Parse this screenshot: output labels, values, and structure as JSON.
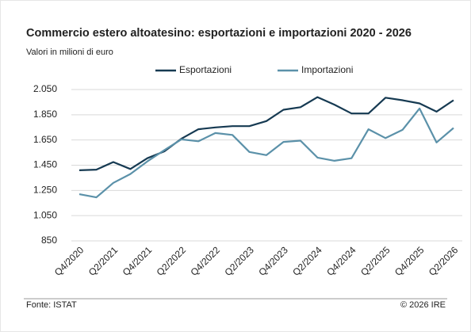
{
  "chart_data": {
    "type": "line",
    "title": "Commercio estero altoatesino: esportazioni e importazioni 2020 - 2026",
    "subtitle": "Valori in milioni di euro",
    "categories": [
      "Q4/2020",
      null,
      "Q2/2021",
      null,
      "Q4/2021",
      null,
      "Q2/2022",
      null,
      "Q4/2022",
      null,
      "Q2/2023",
      null,
      "Q4/2023",
      null,
      "Q2/2024",
      null,
      "Q4/2024",
      null,
      "Q2/2025",
      null,
      "Q4/2025",
      null,
      "Q2/2026"
    ],
    "series": [
      {
        "name": "Esportazioni",
        "color": "#163a52",
        "values": [
          1410,
          1415,
          1475,
          1420,
          1505,
          1560,
          1660,
          1735,
          1750,
          1760,
          1760,
          1800,
          1890,
          1910,
          1990,
          1930,
          1860,
          1860,
          1985,
          1965,
          1940,
          1875,
          1965
        ]
      },
      {
        "name": "Importazioni",
        "color": "#5b91a9",
        "values": [
          1220,
          1195,
          1310,
          1380,
          1480,
          1570,
          1655,
          1640,
          1705,
          1690,
          1555,
          1530,
          1635,
          1645,
          1510,
          1485,
          1505,
          1735,
          1665,
          1730,
          1900,
          1630,
          1745
        ]
      }
    ],
    "ylim": [
      850,
      2050
    ],
    "yticks": [
      {
        "value": 850,
        "label": "850"
      },
      {
        "value": 1050,
        "label": "1.050"
      },
      {
        "value": 1250,
        "label": "1.250"
      },
      {
        "value": 1450,
        "label": "1.450"
      },
      {
        "value": 1650,
        "label": "1.650"
      },
      {
        "value": 1850,
        "label": "1.850"
      },
      {
        "value": 2050,
        "label": "2.050"
      }
    ],
    "grid": true,
    "legend": "top",
    "source": "Fonte: ISTAT",
    "copyright": "© 2026 IRE"
  }
}
